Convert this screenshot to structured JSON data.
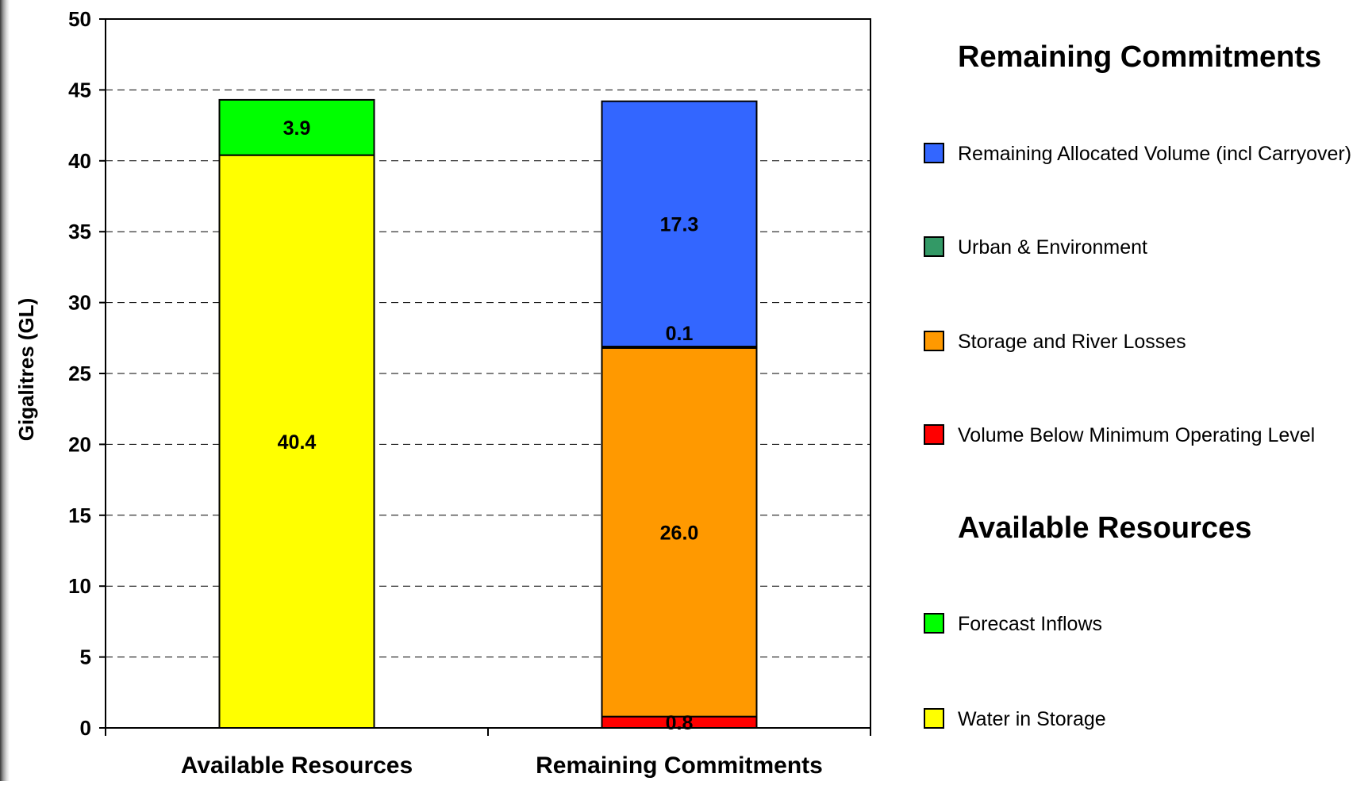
{
  "colors": {
    "remaining_allocated": "#3366FF",
    "urban_environment": "#339966",
    "storage_losses": "#FF9900",
    "below_min": "#FF0000",
    "forecast_inflows": "#00FF00",
    "water_in_storage": "#FFFF00"
  },
  "chart_data": {
    "type": "bar",
    "stacked": true,
    "title": "",
    "xlabel": "",
    "ylabel": "Gigalitres (GL)",
    "ylim": [
      0,
      50
    ],
    "y_ticks": [
      "0",
      "5",
      "10",
      "15",
      "20",
      "25",
      "30",
      "35",
      "40",
      "45",
      "50"
    ],
    "grid": true,
    "legend_position": "right",
    "categories": [
      "Available Resources",
      "Remaining Commitments"
    ],
    "series": [
      {
        "name": "Water in Storage",
        "values": [
          40.4,
          0
        ],
        "labels": [
          "40.4",
          ""
        ],
        "color": "#FFFF00"
      },
      {
        "name": "Forecast Inflows",
        "values": [
          3.9,
          0
        ],
        "labels": [
          "3.9",
          ""
        ],
        "color": "#00FF00"
      },
      {
        "name": "Volume Below Minimum Operating Level",
        "values": [
          0,
          0.8
        ],
        "labels": [
          "",
          "0.8"
        ],
        "color": "#FF0000"
      },
      {
        "name": "Storage and River Losses",
        "values": [
          0,
          26.0
        ],
        "labels": [
          "",
          "26.0"
        ],
        "color": "#FF9900"
      },
      {
        "name": "Urban & Environment",
        "values": [
          0,
          0.1
        ],
        "labels": [
          "",
          "0.1"
        ],
        "color": "#339966"
      },
      {
        "name": "Remaining Allocated Volume (incl Carryover)",
        "values": [
          0,
          17.3
        ],
        "labels": [
          "",
          "17.3"
        ],
        "color": "#3366FF"
      }
    ],
    "legend": {
      "groups": [
        {
          "heading": "Remaining Commitments",
          "items": [
            {
              "label": "Remaining Allocated Volume (incl Carryover)",
              "color": "#3366FF"
            },
            {
              "label": "Urban & Environment",
              "color": "#339966"
            },
            {
              "label": "Storage and River Losses",
              "color": "#FF9900"
            },
            {
              "label": "Volume Below Minimum Operating Level",
              "color": "#FF0000"
            }
          ]
        },
        {
          "heading": "Available Resources",
          "items": [
            {
              "label": "Forecast Inflows",
              "color": "#00FF00"
            },
            {
              "label": "Water in Storage",
              "color": "#FFFF00"
            }
          ]
        }
      ]
    }
  }
}
